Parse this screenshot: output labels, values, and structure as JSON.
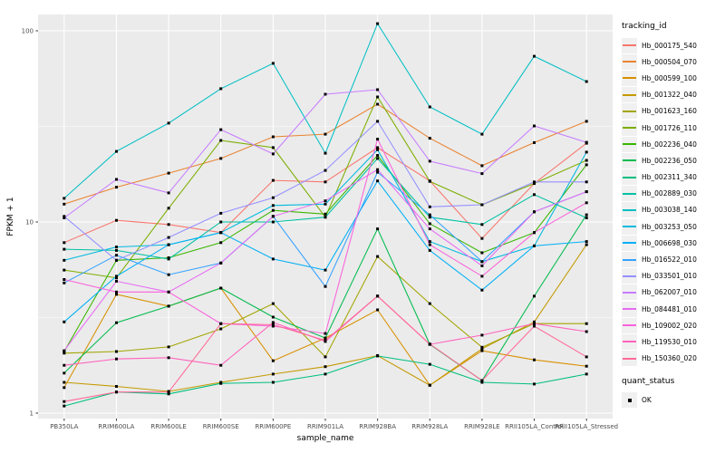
{
  "figure": {
    "background": "#FFFFFF",
    "panel_bg": "#EBEBEB",
    "grid_major_color": "#FFFFFF",
    "grid_minor_color": "#F7F7F7",
    "tick_label_color": "#4D4D4D",
    "axis_title_color": "#000000",
    "point_color": "#000000"
  },
  "chart_data": {
    "type": "line",
    "title": "",
    "xlabel": "sample_name",
    "ylabel": "FPKM + 1",
    "y_scale": "log10",
    "ylim": [
      0.95,
      122
    ],
    "grid": true,
    "legend_position": "right",
    "y_ticks": [
      {
        "v": 1,
        "label": "1"
      },
      {
        "v": 10,
        "label": "10"
      },
      {
        "v": 100,
        "label": "100"
      }
    ],
    "y_minor_ticks": [
      3.1623,
      31.623
    ],
    "categories": [
      "PB350LA",
      "RRIM600LA",
      "RRIM600LE",
      "RRIM600SE",
      "RRIM600PE",
      "RRIM901LA",
      "RRIM928BA",
      "RRIM928LA",
      "RRIM928LE",
      "RRII105LA_Control",
      "RRII105LA_Stressed"
    ],
    "point_marker": "black-square",
    "series": [
      {
        "name": "Hb_000175_540",
        "color": "#F8766D",
        "values": [
          7.8,
          10.2,
          9.7,
          8.8,
          16.5,
          16.2,
          24.5,
          16.4,
          8.2,
          15.9,
          25.8
        ]
      },
      {
        "name": "Hb_000504_070",
        "color": "#EA8331",
        "values": [
          12.4,
          15.2,
          18.0,
          21.5,
          27.9,
          28.8,
          41.3,
          27.4,
          19.7,
          26.0,
          33.6
        ]
      },
      {
        "name": "Hb_000599_100",
        "color": "#D89000",
        "values": [
          1.36,
          4.18,
          3.63,
          4.51,
          1.88,
          2.47,
          3.47,
          1.4,
          2.12,
          1.9,
          1.76
        ]
      },
      {
        "name": "Hb_001322_040",
        "color": "#C49A00",
        "values": [
          1.45,
          1.38,
          1.3,
          1.45,
          1.6,
          1.75,
          2.0,
          1.4,
          2.17,
          3.0,
          7.6
        ]
      },
      {
        "name": "Hb_001623_160",
        "color": "#A3A500",
        "values": [
          2.06,
          2.1,
          2.22,
          2.76,
          3.74,
          1.97,
          6.6,
          3.74,
          2.21,
          2.94,
          2.94
        ]
      },
      {
        "name": "Hb_001726_110",
        "color": "#7CAE00",
        "values": [
          5.6,
          5.1,
          11.8,
          26.7,
          24.5,
          10.6,
          45.1,
          16.3,
          12.3,
          15.9,
          21.0
        ]
      },
      {
        "name": "Hb_002236_040",
        "color": "#39B600",
        "values": [
          2.1,
          6.3,
          6.5,
          7.8,
          11.5,
          11.0,
          22.3,
          9.8,
          6.9,
          8.8,
          19.9
        ]
      },
      {
        "name": "Hb_002236_050",
        "color": "#00BB4E",
        "values": [
          1.62,
          2.97,
          3.63,
          4.51,
          3.18,
          2.47,
          9.2,
          2.29,
          1.48,
          4.09,
          10.9
        ]
      },
      {
        "name": "Hb_002311_340",
        "color": "#00BF7D",
        "values": [
          1.09,
          1.29,
          1.26,
          1.43,
          1.45,
          1.6,
          1.99,
          1.8,
          1.45,
          1.42,
          1.6
        ]
      },
      {
        "name": "Hb_002889_030",
        "color": "#00C1A3",
        "values": [
          7.2,
          7.1,
          6.4,
          10.0,
          10.0,
          10.6,
          21.5,
          10.6,
          9.7,
          13.9,
          10.5
        ]
      },
      {
        "name": "Hb_003038_140",
        "color": "#00BFC4",
        "values": [
          13.3,
          23.4,
          32.9,
          49.8,
          67.6,
          22.9,
          109.0,
          40.0,
          28.8,
          73.6,
          54.3
        ]
      },
      {
        "name": "Hb_003253_050",
        "color": "#00BAE0",
        "values": [
          6.3,
          7.4,
          7.6,
          8.8,
          12.2,
          12.4,
          23.9,
          7.9,
          6.2,
          7.5,
          23.2
        ]
      },
      {
        "name": "Hb_006698_030",
        "color": "#00B0F6",
        "values": [
          3.0,
          5.2,
          7.6,
          8.8,
          6.4,
          5.6,
          16.4,
          7.1,
          4.4,
          7.5,
          7.9
        ]
      },
      {
        "name": "Hb_016522_010",
        "color": "#35A2FF",
        "values": [
          4.8,
          6.7,
          5.3,
          6.1,
          10.7,
          4.6,
          18.2,
          10.9,
          6.2,
          11.3,
          14.4
        ]
      },
      {
        "name": "Hb_033501_010",
        "color": "#9590FF",
        "values": [
          10.7,
          6.3,
          8.3,
          11.1,
          13.4,
          18.6,
          33.6,
          12.0,
          12.3,
          16.2,
          16.2
        ]
      },
      {
        "name": "Hb_062007_010",
        "color": "#C77CFF",
        "values": [
          10.5,
          16.7,
          14.2,
          30.4,
          22.7,
          46.6,
          49.2,
          20.8,
          17.9,
          31.8,
          26.1
        ]
      },
      {
        "name": "Hb_084481_010",
        "color": "#E76BF3",
        "values": [
          2.12,
          4.9,
          4.3,
          6.1,
          10.7,
          12.9,
          18.8,
          9.2,
          5.9,
          11.3,
          14.4
        ]
      },
      {
        "name": "Hb_109002_020",
        "color": "#FA62DB",
        "values": [
          5.0,
          4.3,
          4.3,
          2.94,
          2.85,
          2.61,
          27.1,
          7.6,
          5.2,
          8.8,
          12.6
        ]
      },
      {
        "name": "Hb_119530_010",
        "color": "#FF62BC",
        "values": [
          1.78,
          1.92,
          1.95,
          1.78,
          2.98,
          2.37,
          4.09,
          2.29,
          2.56,
          2.94,
          2.67
        ]
      },
      {
        "name": "Hb_150360_020",
        "color": "#FF6A98",
        "values": [
          1.15,
          1.29,
          1.29,
          2.94,
          2.9,
          2.4,
          4.1,
          2.3,
          1.48,
          2.85,
          1.97
        ]
      }
    ],
    "legend": {
      "tracking_title": "tracking_id",
      "quant_title": "quant_status",
      "quant_items": [
        {
          "label": "OK",
          "marker": "black-square"
        }
      ]
    }
  }
}
